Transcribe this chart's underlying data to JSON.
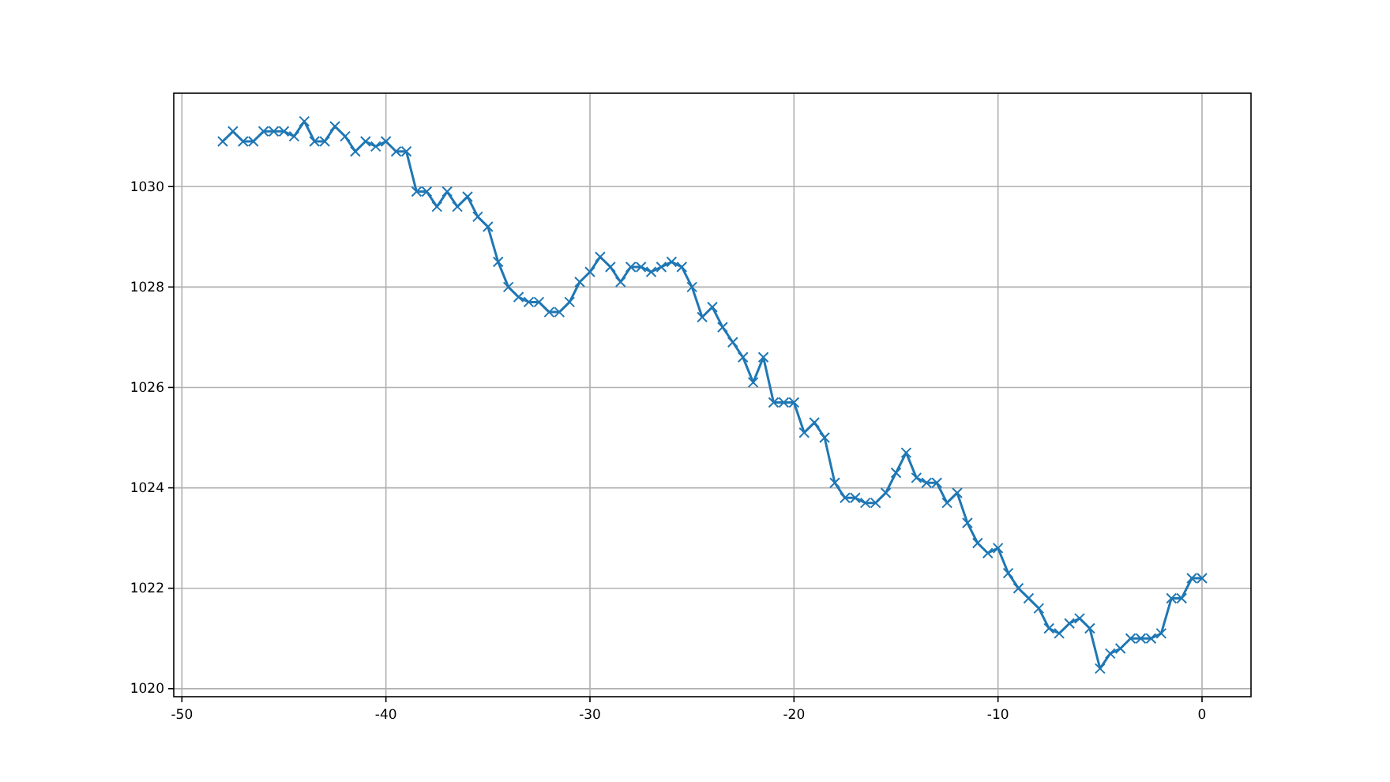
{
  "chart_data": {
    "type": "line",
    "marker": "cross",
    "grid": true,
    "x": [
      -48,
      -47.5,
      -47,
      -46.5,
      -46,
      -45.5,
      -45,
      -44.5,
      -44,
      -43.5,
      -43,
      -42.5,
      -42,
      -41.5,
      -41,
      -40.5,
      -40,
      -39.5,
      -39,
      -38.5,
      -38,
      -37.5,
      -37,
      -36.5,
      -36,
      -35.5,
      -35,
      -34.5,
      -34,
      -33.5,
      -33,
      -32.5,
      -32,
      -31.5,
      -31,
      -30.5,
      -30,
      -29.5,
      -29,
      -28.5,
      -28,
      -27.5,
      -27,
      -26.5,
      -26,
      -25.5,
      -25,
      -24.5,
      -24,
      -23.5,
      -23,
      -22.5,
      -22,
      -21.5,
      -21,
      -20.5,
      -20,
      -19.5,
      -19,
      -18.5,
      -18,
      -17.5,
      -17,
      -16.5,
      -16,
      -15.5,
      -15,
      -14.5,
      -14,
      -13.5,
      -13,
      -12.5,
      -12,
      -11.5,
      -11,
      -10.5,
      -10,
      -9.5,
      -9,
      -8.5,
      -8,
      -7.5,
      -7,
      -6.5,
      -6,
      -5.5,
      -5,
      -4.5,
      -4,
      -3.5,
      -3,
      -2.5,
      -2,
      -1.5,
      -1,
      -0.5,
      0
    ],
    "series": [
      {
        "color": "#1f77b4",
        "values": [
          1030.9,
          1031.1,
          1030.9,
          1030.9,
          1031.1,
          1031.1,
          1031.1,
          1031.0,
          1031.3,
          1030.9,
          1030.9,
          1031.2,
          1031.0,
          1030.7,
          1030.9,
          1030.8,
          1030.9,
          1030.7,
          1030.7,
          1029.9,
          1029.9,
          1029.6,
          1029.9,
          1029.6,
          1029.8,
          1029.4,
          1029.2,
          1028.5,
          1028.0,
          1027.8,
          1027.7,
          1027.7,
          1027.5,
          1027.5,
          1027.7,
          1028.1,
          1028.3,
          1028.6,
          1028.4,
          1028.1,
          1028.4,
          1028.4,
          1028.3,
          1028.4,
          1028.5,
          1028.4,
          1028.0,
          1027.4,
          1027.6,
          1027.2,
          1026.9,
          1026.6,
          1026.1,
          1026.6,
          1025.7,
          1025.7,
          1025.7,
          1025.1,
          1025.3,
          1025.0,
          1024.1,
          1023.8,
          1023.8,
          1023.7,
          1023.7,
          1023.9,
          1024.3,
          1024.7,
          1024.2,
          1024.1,
          1024.1,
          1023.7,
          1023.9,
          1023.3,
          1022.9,
          1022.7,
          1022.8,
          1022.3,
          1022.0,
          1021.8,
          1021.6,
          1021.2,
          1021.1,
          1021.3,
          1021.4,
          1021.2,
          1020.4,
          1020.7,
          1020.8,
          1021.0,
          1021.0,
          1021.0,
          1021.1,
          1021.8,
          1021.8,
          1022.2,
          1022.2
        ]
      }
    ],
    "xlim": [
      -50.4,
      2.4
    ],
    "ylim": [
      1019.84,
      1031.86
    ],
    "xticks": [
      -50,
      -40,
      -30,
      -20,
      -10,
      0
    ],
    "yticks": [
      1020,
      1022,
      1024,
      1026,
      1028,
      1030
    ]
  }
}
